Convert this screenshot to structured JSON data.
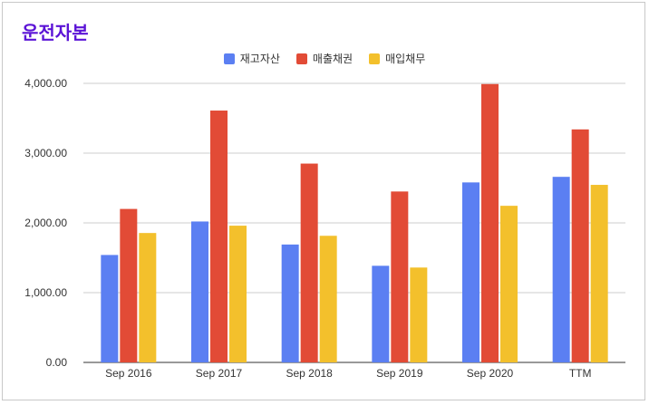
{
  "chart_data": {
    "type": "bar",
    "title": "운전자본",
    "categories": [
      "Sep 2016",
      "Sep 2017",
      "Sep 2018",
      "Sep 2019",
      "Sep 2020",
      "TTM"
    ],
    "series": [
      {
        "name": "재고자산",
        "color": "#5b7ff2",
        "values": [
          1540,
          2020,
          1690,
          1385,
          2580,
          2660
        ]
      },
      {
        "name": "매출채권",
        "color": "#e24b36",
        "values": [
          2200,
          3610,
          2850,
          2450,
          3990,
          3340
        ]
      },
      {
        "name": "매입채무",
        "color": "#f3c02c",
        "values": [
          1855,
          1960,
          1815,
          1360,
          2245,
          2545
        ]
      }
    ],
    "y_ticks": [
      "0.00",
      "1,000.00",
      "2,000.00",
      "3,000.00",
      "4,000.00"
    ],
    "ylim": [
      0,
      4000
    ],
    "grid": true,
    "legend_position": "top-center",
    "xlabel": "",
    "ylabel": ""
  }
}
